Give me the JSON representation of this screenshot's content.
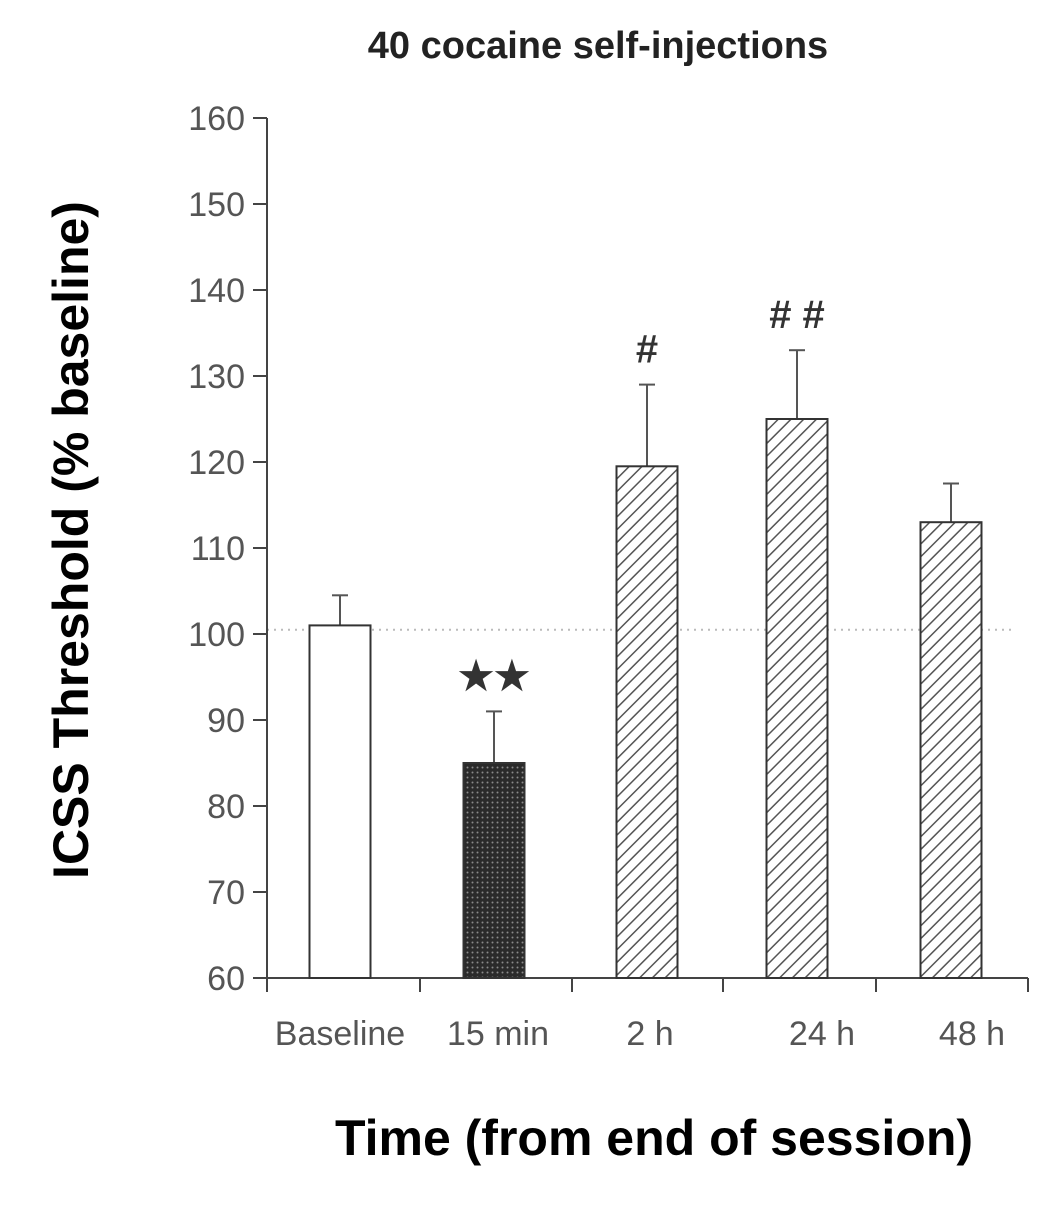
{
  "chart_data": {
    "type": "bar",
    "title": "40 cocaine self-injections",
    "xlabel": "Time (from end of session)",
    "ylabel": "ICSS Threshold (% baseline)",
    "ylim": [
      60,
      160
    ],
    "yticks": [
      60,
      70,
      80,
      90,
      100,
      110,
      120,
      130,
      140,
      150,
      160
    ],
    "categories": [
      "Baseline",
      "15 min",
      "2 h",
      "24 h",
      "48 h"
    ],
    "values": [
      101,
      85,
      119.5,
      125,
      113
    ],
    "errors": [
      3.5,
      6,
      9.5,
      8,
      4.5
    ],
    "fills": [
      "white",
      "dots",
      "hatch",
      "hatch",
      "hatch"
    ],
    "annotations": [
      "",
      "★★",
      "#",
      "# #",
      ""
    ],
    "reference_line": 100.5,
    "grid": false
  }
}
